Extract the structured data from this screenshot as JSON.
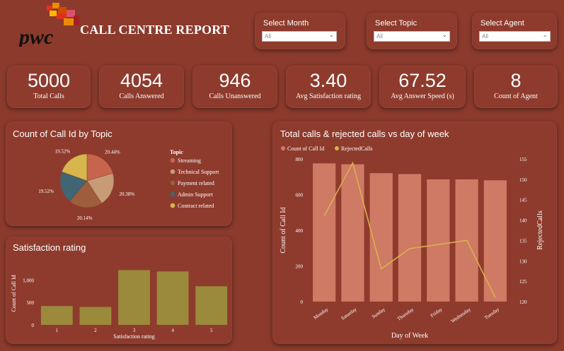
{
  "header": {
    "title": "CALL CENTRE REPORT",
    "logo_text": "pwc"
  },
  "slicers": [
    {
      "label": "Select Month",
      "value": "All"
    },
    {
      "label": "Select Topic",
      "value": "All"
    },
    {
      "label": "Select Agent",
      "value": "All"
    }
  ],
  "kpis": [
    {
      "value": "5000",
      "label": "Total Calls"
    },
    {
      "value": "4054",
      "label": "Calls Answered"
    },
    {
      "value": "946",
      "label": "Calls Unanswered"
    },
    {
      "value": "3.40",
      "label": "Avg Satisfaction rating"
    },
    {
      "value": "67.52",
      "label": "Avg Answer Speed (s)"
    },
    {
      "value": "8",
      "label": "Count of Agent"
    }
  ],
  "pie_panel": {
    "title": "Count of Call Id by Topic",
    "legend_title": "Topic"
  },
  "rating_panel": {
    "title": "Satisfaction rating"
  },
  "combo_panel": {
    "title": "Total calls & rejected calls vs day of week"
  },
  "colors": {
    "background": "#8b3a2c",
    "bar_calls": "#cf7a65",
    "line_rejected": "#d8b24a",
    "bar_rating": "#9b8a3c"
  },
  "chart_data": [
    {
      "type": "pie",
      "title": "Count of Call Id by Topic",
      "legend_title": "Topic",
      "categories": [
        "Streaming",
        "Technical Support",
        "Payment related",
        "Admin Support",
        "Contract related"
      ],
      "values": [
        20.44,
        20.38,
        20.14,
        19.52,
        19.52
      ],
      "labels": [
        "20.44%",
        "20.38%",
        "20.14%",
        "19.52%",
        "19.52%"
      ],
      "colors": [
        "#c8644e",
        "#c79b76",
        "#9e5e3d",
        "#3f6672",
        "#d6b64d"
      ]
    },
    {
      "type": "bar",
      "title": "Satisfaction rating",
      "categories": [
        "1",
        "2",
        "3",
        "4",
        "5"
      ],
      "values": [
        420,
        400,
        1220,
        1190,
        860
      ],
      "xlabel": "Satisfaction rating",
      "ylabel": "Count of Call Id",
      "ylim": [
        0,
        1400
      ],
      "yticks": [
        0,
        500,
        1000
      ],
      "ytick_labels": [
        "0",
        "500",
        "1,000"
      ]
    },
    {
      "type": "bar",
      "title": "Total calls & rejected calls vs day of week",
      "categories": [
        "Monday",
        "Saturday",
        "Sunday",
        "Thursday",
        "Friday",
        "Wednesday",
        "Tuesday"
      ],
      "series": [
        {
          "name": "Count of Call Id",
          "values": [
            775,
            770,
            720,
            715,
            685,
            685,
            680
          ],
          "axis": "left"
        },
        {
          "name": "RejectedCalls",
          "values": [
            141,
            154,
            128,
            133,
            134,
            135,
            121
          ],
          "axis": "right"
        }
      ],
      "xlabel": "Day of Week",
      "ylabel": "Count of Call Id",
      "y2label": "RejectedCalls",
      "ylim": [
        0,
        800
      ],
      "yticks": [
        0,
        200,
        400,
        600,
        800
      ],
      "y2lim": [
        120,
        155
      ],
      "y2ticks": [
        120,
        125,
        130,
        135,
        140,
        145,
        150,
        155
      ]
    }
  ]
}
